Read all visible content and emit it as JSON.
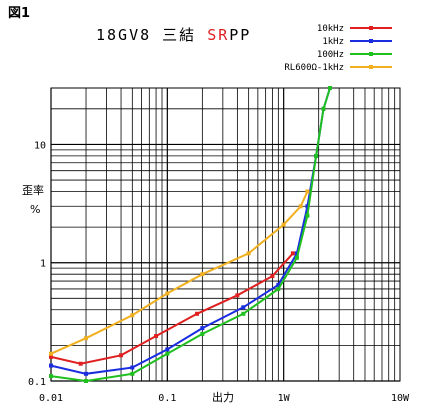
{
  "figure_label": "図1",
  "chart_data": {
    "type": "line",
    "title_parts": [
      {
        "text": "18GV8 三結 ",
        "color": "#000000"
      },
      {
        "text": "S",
        "color": "#e02020"
      },
      {
        "text": "R",
        "color": "#e02020"
      },
      {
        "text": "PP",
        "color": "#000000"
      }
    ],
    "xlabel": "出力",
    "ylabel": [
      "歪率",
      "%"
    ],
    "x_scale": "log",
    "y_scale": "log",
    "xlim": [
      0.01,
      10
    ],
    "ylim": [
      0.1,
      30
    ],
    "grid": true,
    "legend_position": "top-right",
    "x_ticks": [
      {
        "value": 0.01,
        "label": "0.01"
      },
      {
        "value": 0.1,
        "label": "0.1"
      },
      {
        "value": 1,
        "label": "1W"
      },
      {
        "value": 10,
        "label": "10W"
      }
    ],
    "y_ticks": [
      {
        "value": 0.1,
        "label": "0.1"
      },
      {
        "value": 1,
        "label": "1"
      },
      {
        "value": 10,
        "label": "10"
      }
    ],
    "series": [
      {
        "name": "10kHz",
        "color": "#e02020",
        "x": [
          0.01,
          0.018,
          0.04,
          0.08,
          0.18,
          0.4,
          0.8,
          1.2
        ],
        "y": [
          0.16,
          0.14,
          0.165,
          0.24,
          0.37,
          0.53,
          0.77,
          1.2
        ]
      },
      {
        "name": "1kHz",
        "color": "#1a2ee0",
        "x": [
          0.01,
          0.02,
          0.05,
          0.1,
          0.2,
          0.45,
          0.9,
          1.3,
          1.6,
          1.9,
          2.2,
          2.5
        ],
        "y": [
          0.135,
          0.115,
          0.13,
          0.185,
          0.28,
          0.42,
          0.65,
          1.2,
          3,
          8,
          20,
          30
        ]
      },
      {
        "name": "100Hz",
        "color": "#20c020",
        "x": [
          0.01,
          0.02,
          0.05,
          0.1,
          0.2,
          0.45,
          0.9,
          1.3,
          1.6,
          1.9,
          2.2,
          2.5
        ],
        "y": [
          0.11,
          0.1,
          0.115,
          0.17,
          0.25,
          0.37,
          0.6,
          1.1,
          2.5,
          8,
          20,
          30
        ]
      },
      {
        "name": "RL600Ω-1kHz",
        "color": "#f0b020",
        "x": [
          0.01,
          0.02,
          0.05,
          0.1,
          0.2,
          0.5,
          1.0,
          1.4,
          1.6
        ],
        "y": [
          0.17,
          0.23,
          0.36,
          0.55,
          0.8,
          1.2,
          2.1,
          3.0,
          4.0
        ]
      }
    ]
  }
}
